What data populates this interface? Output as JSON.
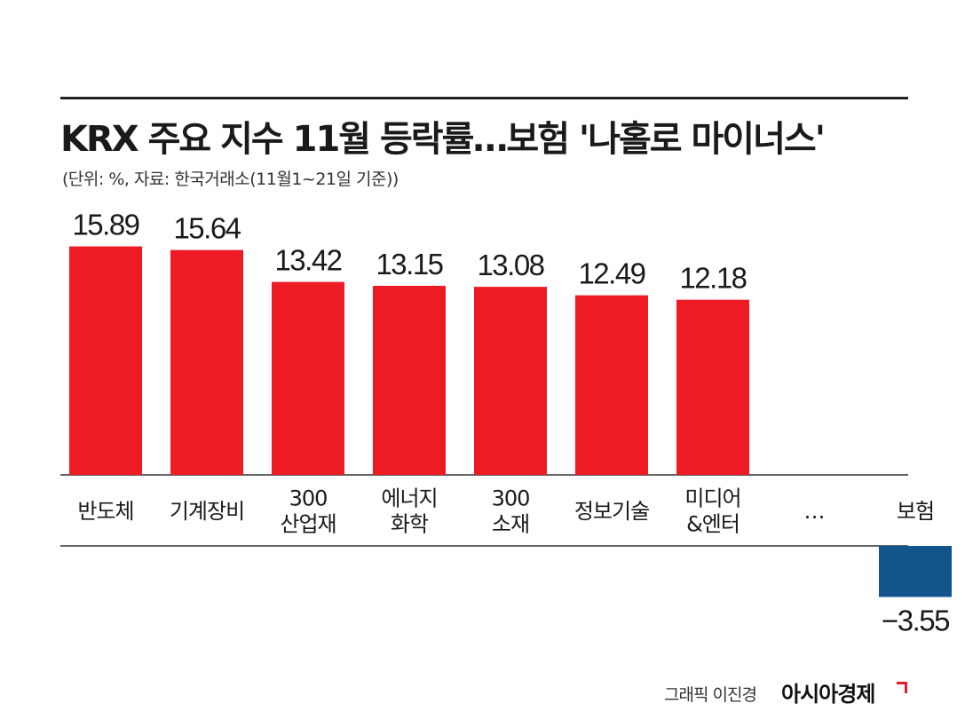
{
  "title": "KRX 주요 지수 11월 등락률…보험 '나홀로 마이너스'",
  "subtitle": "(단위: %, 자료: 한국거래소(11월1~21일 기준))",
  "chart_data": {
    "type": "bar",
    "categories": [
      [
        "반도체"
      ],
      [
        "기계장비"
      ],
      [
        "300",
        "산업재"
      ],
      [
        "에너지",
        "화학"
      ],
      [
        "300",
        "소재"
      ],
      [
        "정보기술"
      ],
      [
        "미디어",
        "&엔터"
      ],
      [
        "…"
      ],
      [
        "보험"
      ]
    ],
    "values": [
      15.89,
      15.64,
      13.42,
      13.15,
      13.08,
      12.49,
      12.18,
      null,
      -3.55
    ],
    "value_labels": [
      "15.89",
      "15.64",
      "13.42",
      "13.15",
      "13.08",
      "12.49",
      "12.18",
      "",
      "−3.55"
    ],
    "ylim": [
      -4,
      18
    ],
    "grid": false,
    "colors": {
      "positive": "#ed1c24",
      "negative": "#11558c",
      "axis": "#333333"
    }
  },
  "credit": {
    "graphic": "그래픽 이진경",
    "brand": "아시아경제"
  }
}
